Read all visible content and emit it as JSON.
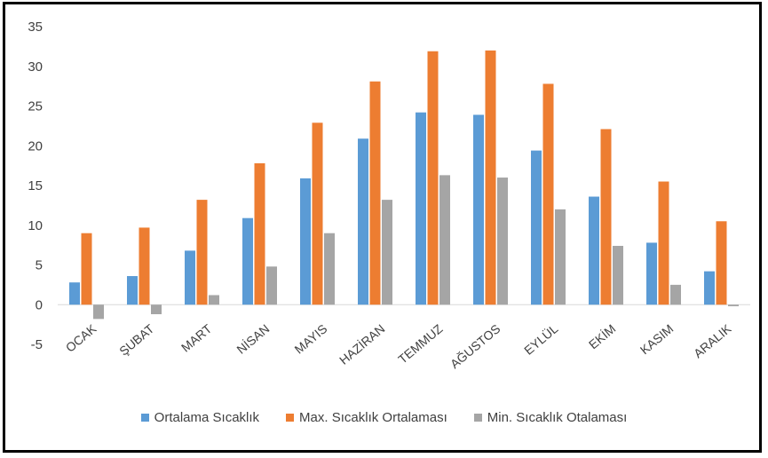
{
  "chart_data": {
    "type": "bar",
    "categories": [
      "OCAK",
      "ŞUBAT",
      "MART",
      "NİSAN",
      "MAYIS",
      "HAZİRAN",
      "TEMMUZ",
      "AĞUSTOS",
      "EYLÜL",
      "EKİM",
      "KASIM",
      "ARALIK"
    ],
    "series": [
      {
        "name": "Ortalama Sıcaklık",
        "color": "#5B9BD5",
        "values": [
          2.8,
          3.6,
          6.8,
          10.9,
          15.9,
          20.9,
          24.2,
          23.9,
          19.4,
          13.6,
          7.8,
          4.2
        ]
      },
      {
        "name": "Max. Sıcaklık Ortalaması",
        "color": "#ED7D31",
        "values": [
          9.0,
          9.7,
          13.2,
          17.8,
          22.9,
          28.1,
          31.9,
          32.0,
          27.8,
          22.1,
          15.5,
          10.5
        ]
      },
      {
        "name": "Min. Sıcaklık Otalaması",
        "color": "#A5A5A5",
        "values": [
          -1.8,
          -1.2,
          1.2,
          4.8,
          9.0,
          13.2,
          16.3,
          16.0,
          12.0,
          7.4,
          2.5,
          -0.2
        ]
      }
    ],
    "yticks": [
      "35",
      "30",
      "25",
      "20",
      "15",
      "10",
      "5",
      "0",
      "-5"
    ],
    "ylim": [
      -5,
      35
    ],
    "legend_position": "bottom",
    "grid": false
  }
}
